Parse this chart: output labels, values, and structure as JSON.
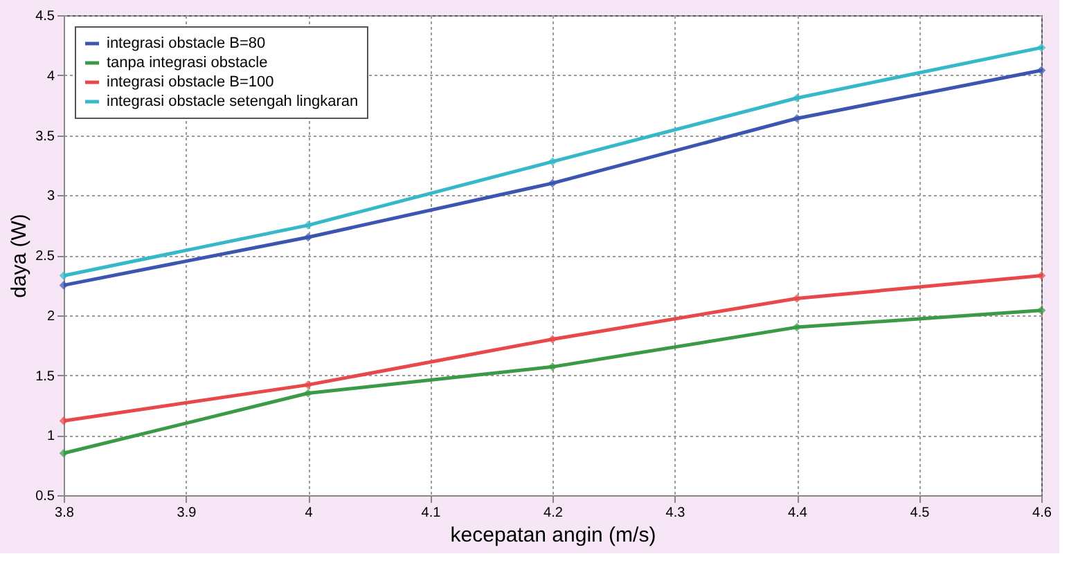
{
  "chart_data": {
    "type": "line",
    "xlabel": "kecepatan angin (m/s)",
    "ylabel": "daya (W)",
    "x": [
      3.8,
      4.0,
      4.2,
      4.4,
      4.6
    ],
    "series": [
      {
        "name": "integrasi obstacle B=80",
        "color": "#3b55b0",
        "values": [
          2.25,
          2.65,
          3.1,
          3.64,
          4.04
        ]
      },
      {
        "name": "tanpa integrasi obstacle",
        "color": "#3a9a45",
        "values": [
          0.85,
          1.35,
          1.57,
          1.9,
          2.04
        ]
      },
      {
        "name": "integrasi obstacle B=100",
        "color": "#e8484a",
        "values": [
          1.12,
          1.42,
          1.8,
          2.14,
          2.33
        ]
      },
      {
        "name": "integrasi obstacle setengah lingkaran",
        "color": "#35b8c8",
        "values": [
          2.33,
          2.75,
          3.28,
          3.81,
          4.23
        ]
      }
    ],
    "xlim": [
      3.8,
      4.6
    ],
    "xticks": [
      3.8,
      3.9,
      4,
      4.1,
      4.2,
      4.3,
      4.4,
      4.5,
      4.6
    ],
    "ylim": [
      0.5,
      4.5
    ],
    "yticks": [
      0.5,
      1,
      1.5,
      2,
      2.5,
      3,
      3.5,
      4,
      4.5
    ],
    "grid": true,
    "legend": "top left",
    "marker": "diamond",
    "line_style": "solid"
  }
}
